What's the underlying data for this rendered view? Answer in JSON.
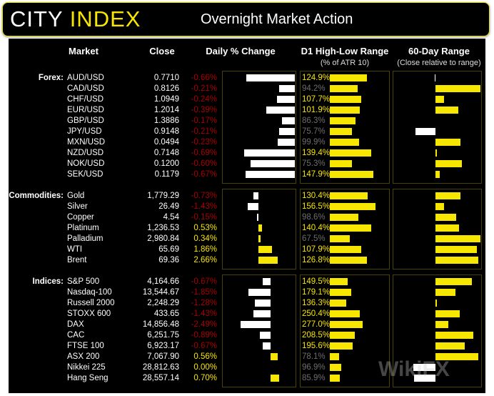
{
  "header": {
    "logo_city": "CITY",
    "logo_index": "INDEX",
    "title": "Overnight Market Action"
  },
  "columns": {
    "market": "Market",
    "close": "Close",
    "daily": "Daily % Change",
    "d1": "D1 High-Low Range",
    "d1_sub": "(% of ATR 10)",
    "range60": "60-Day Range",
    "range60_sub": "(Close relative to range)"
  },
  "colors": {
    "accent": "#f7e600",
    "negative": "#a80000",
    "neutral": "#6e6e6e",
    "bar_negative": "#ffffff"
  },
  "groups": [
    {
      "label": "Forex:",
      "rows": [
        {
          "market": "AUD/USD",
          "close": "0.7710",
          "change": "-0.66%",
          "change_value": -0.66,
          "d1": "124.9%",
          "d1_value": 124.9,
          "range60": -0.02
        },
        {
          "market": "CAD/USD",
          "close": "0.8126",
          "change": "-0.21%",
          "change_value": -0.21,
          "d1": "94.2%",
          "d1_value": 94.2,
          "range60": 1.0
        },
        {
          "market": "CHF/USD",
          "close": "1.0949",
          "change": "-0.24%",
          "change_value": -0.24,
          "d1": "107.7%",
          "d1_value": 107.7,
          "range60": 0.19
        },
        {
          "market": "EUR/USD",
          "close": "1.2014",
          "change": "-0.39%",
          "change_value": -0.39,
          "d1": "101.9%",
          "d1_value": 101.9,
          "range60": 0.5
        },
        {
          "market": "GBP/USD",
          "close": "1.3886",
          "change": "-0.17%",
          "change_value": -0.17,
          "d1": "86.3%",
          "d1_value": 86.3,
          "range60": 0.0
        },
        {
          "market": "JPY/USD",
          "close": "0.9148",
          "change": "-0.21%",
          "change_value": -0.21,
          "d1": "75.7%",
          "d1_value": 75.7,
          "range60": -0.45
        },
        {
          "market": "MXN/USD",
          "close": "0.0494",
          "change": "-0.23%",
          "change_value": -0.23,
          "d1": "99.9%",
          "d1_value": 99.9,
          "range60": 0.56
        },
        {
          "market": "NZD/USD",
          "close": "0.7148",
          "change": "-0.69%",
          "change_value": -0.69,
          "d1": "139.4%",
          "d1_value": 139.4,
          "range60": 0.03
        },
        {
          "market": "NOK/USD",
          "close": "0.1200",
          "change": "-0.60%",
          "change_value": -0.6,
          "d1": "75.3%",
          "d1_value": 75.3,
          "range60": 0.59
        },
        {
          "market": "SEK/USD",
          "close": "0.1179",
          "change": "-0.67%",
          "change_value": -0.67,
          "d1": "147.9%",
          "d1_value": 147.9,
          "range60": 0.1
        }
      ]
    },
    {
      "label": "Commodities:",
      "rows": [
        {
          "market": "Gold",
          "close": "1,779.29",
          "change": "-0.73%",
          "change_value": -0.73,
          "d1": "130.4%",
          "d1_value": 130.4,
          "range60": 0.56
        },
        {
          "market": "Silver",
          "close": "26.49",
          "change": "-1.43%",
          "change_value": -1.43,
          "d1": "156.5%",
          "d1_value": 156.5,
          "range60": 0.19
        },
        {
          "market": "Copper",
          "close": "4.54",
          "change": "-0.15%",
          "change_value": -0.15,
          "d1": "98.6%",
          "d1_value": 98.6,
          "range60": 0.46
        },
        {
          "market": "Platinum",
          "close": "1,236.53",
          "change": "0.53%",
          "change_value": 0.53,
          "d1": "140.4%",
          "d1_value": 140.4,
          "range60": 0.52
        },
        {
          "market": "Palladium",
          "close": "2,980.84",
          "change": "0.34%",
          "change_value": 0.34,
          "d1": "67.5%",
          "d1_value": 67.5,
          "range60": 1.0
        },
        {
          "market": "WTI",
          "close": "65.69",
          "change": "1.86%",
          "change_value": 1.86,
          "d1": "107.9%",
          "d1_value": 107.9,
          "range60": 0.92
        },
        {
          "market": "Brent",
          "close": "69.36",
          "change": "2.66%",
          "change_value": 2.66,
          "d1": "126.8%",
          "d1_value": 126.8,
          "range60": 0.95
        }
      ]
    },
    {
      "label": "Indices:",
      "rows": [
        {
          "market": "S&P 500",
          "close": "4,164.66",
          "change": "-0.67%",
          "change_value": -0.67,
          "d1": "149.5%",
          "d1_value": 149.5,
          "range60": 0.81
        },
        {
          "market": "Nasdaq-100",
          "close": "13,544.67",
          "change": "-1.85%",
          "change_value": -1.85,
          "d1": "179.1%",
          "d1_value": 179.1,
          "range60": 0.44
        },
        {
          "market": "Russell 2000",
          "close": "2,248.29",
          "change": "-1.28%",
          "change_value": -1.28,
          "d1": "136.3%",
          "d1_value": 136.3,
          "range60": 0.02
        },
        {
          "market": "STOXX 600",
          "close": "433.65",
          "change": "-1.43%",
          "change_value": -1.43,
          "d1": "250.4%",
          "d1_value": 250.4,
          "range60": 0.54
        },
        {
          "market": "DAX",
          "close": "14,856.48",
          "change": "-2.49%",
          "change_value": -2.49,
          "d1": "277.0%",
          "d1_value": 277.0,
          "range60": 0.29
        },
        {
          "market": "CAC",
          "close": "6,251.75",
          "change": "-0.89%",
          "change_value": -0.89,
          "d1": "208.5%",
          "d1_value": 208.5,
          "range60": 0.84
        },
        {
          "market": "FTSE 100",
          "close": "6,923.17",
          "change": "-0.67%",
          "change_value": -0.67,
          "d1": "195.6%",
          "d1_value": 195.6,
          "range60": 0.65
        },
        {
          "market": "ASX 200",
          "close": "7,067.90",
          "change": "0.56%",
          "change_value": 0.56,
          "d1": "78.1%",
          "d1_value": 78.1,
          "range60": 0.95
        },
        {
          "market": "Nikkei 225",
          "close": "28,812.63",
          "change": "0.00%",
          "change_value": 0.0,
          "d1": "96.9%",
          "d1_value": 96.9,
          "range60": -0.5
        },
        {
          "market": "Hang Seng",
          "close": "28,557.14",
          "change": "0.70%",
          "change_value": 0.7,
          "d1": "85.9%",
          "d1_value": 85.9,
          "range60": -0.48
        }
      ]
    }
  ],
  "watermark": "WikiFX"
}
